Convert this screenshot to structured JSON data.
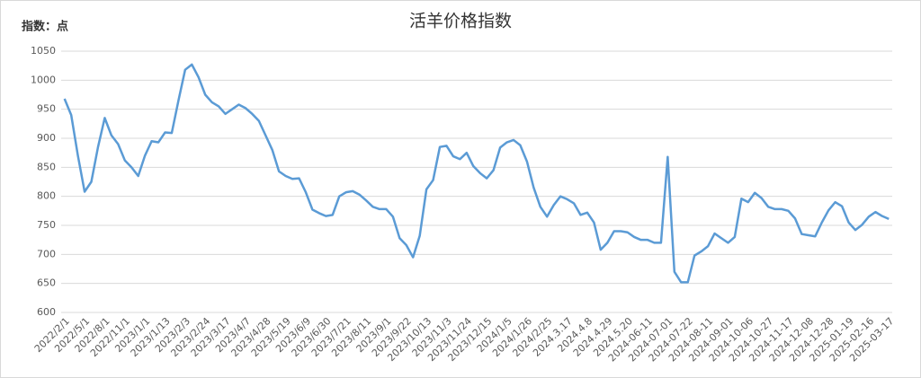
{
  "chart_data": {
    "type": "line",
    "title": "活羊价格指数",
    "y_label": "指数：点",
    "categories": [
      "2022/2/1",
      null,
      null,
      "2022/5/1",
      null,
      null,
      "2022/8/1",
      null,
      null,
      "2022/11/1",
      null,
      null,
      "2023/1/1",
      null,
      null,
      "2023/1/13",
      null,
      null,
      "2023/2/3",
      null,
      null,
      "2023/2/24",
      null,
      null,
      "2023/3/17",
      null,
      null,
      "2023/4/7",
      null,
      null,
      "2023/4/28",
      null,
      null,
      "2023/5/19",
      null,
      null,
      "2023/6/9",
      null,
      null,
      "2023/6/30",
      null,
      null,
      "2023/7/21",
      null,
      null,
      "2023/8/11",
      null,
      null,
      "2023/9/1",
      null,
      null,
      "2023/9/22",
      null,
      null,
      "2023/10/13",
      null,
      null,
      "2023/11/3",
      null,
      null,
      "2023/11/24",
      null,
      null,
      "2023/12/15",
      null,
      null,
      "2024/1/5",
      null,
      null,
      "2024/1/26",
      null,
      null,
      "2024/2/25",
      null,
      null,
      "2024.3.17",
      null,
      null,
      "2024.4.8",
      null,
      null,
      "2024.4.29",
      null,
      null,
      "2024.5.20",
      null,
      null,
      "2024-06-11",
      null,
      null,
      "2024-07-01",
      null,
      null,
      "2024-07-22",
      null,
      null,
      "2024-08-11",
      null,
      null,
      "2024-09-01",
      null,
      null,
      "2024-10-06",
      null,
      null,
      "2024-10-27",
      null,
      null,
      "2024-11-17",
      null,
      null,
      "2024-12-08",
      null,
      null,
      "2024-12-28",
      null,
      null,
      "2025-01-19",
      null,
      null,
      "2025-02-16",
      null,
      null,
      "2025-03-17"
    ],
    "series": [
      {
        "name": "活羊价格指数",
        "color": "#5b9bd5",
        "values": [
          968,
          940,
          870,
          808,
          825,
          885,
          935,
          905,
          890,
          862,
          850,
          835,
          870,
          895,
          893,
          910,
          909,
          965,
          1018,
          1027,
          1005,
          975,
          962,
          955,
          942,
          950,
          958,
          952,
          942,
          930,
          905,
          880,
          843,
          835,
          830,
          831,
          807,
          777,
          771,
          766,
          768,
          800,
          807,
          809,
          803,
          793,
          782,
          778,
          778,
          765,
          728,
          716,
          695,
          732,
          812,
          828,
          885,
          887,
          869,
          864,
          875,
          852,
          840,
          831,
          845,
          884,
          893,
          897,
          888,
          860,
          815,
          782,
          765,
          785,
          800,
          795,
          788,
          768,
          772,
          755,
          708,
          720,
          740,
          740,
          738,
          730,
          725,
          725,
          720,
          720,
          868,
          670,
          652,
          652,
          698,
          705,
          714,
          736,
          728,
          720,
          730,
          796,
          790,
          806,
          797,
          782,
          778,
          778,
          775,
          762,
          735,
          733,
          731,
          755,
          776,
          790,
          783,
          755,
          742,
          751,
          765,
          773,
          766,
          761
        ]
      }
    ],
    "ylim": [
      600,
      1050
    ],
    "yticks": [
      600,
      650,
      700,
      750,
      800,
      850,
      900,
      950,
      1000,
      1050
    ],
    "grid": true
  }
}
